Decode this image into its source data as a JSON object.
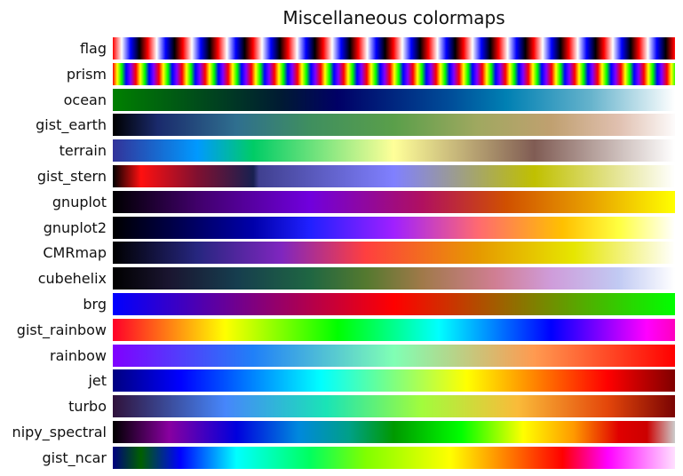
{
  "title": "Miscellaneous colormaps",
  "colormaps": [
    "flag",
    "prism",
    "ocean",
    "gist_earth",
    "terrain",
    "gist_stern",
    "gnuplot",
    "gnuplot2",
    "CMRmap",
    "cubehelix",
    "brg",
    "gist_rainbow",
    "rainbow",
    "jet",
    "turbo",
    "nipy_spectral",
    "gist_ncar"
  ]
}
